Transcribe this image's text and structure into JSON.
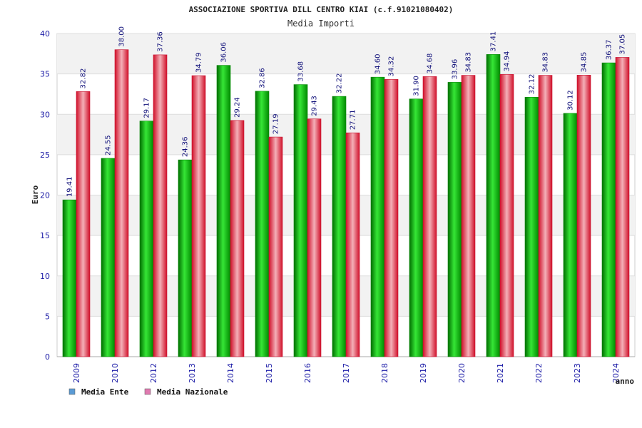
{
  "chart_data": {
    "type": "bar",
    "title": "ASSOCIAZIONE SPORTIVA DILL CENTRO KIAI (c.f.91021080402)",
    "subtitle": "Media Importi",
    "xlabel": "anno",
    "ylabel": "Euro",
    "ylim": [
      0,
      40
    ],
    "yticks": [
      0,
      5,
      10,
      15,
      20,
      25,
      30,
      35,
      40
    ],
    "grid": true,
    "legend_position": "bottom-left",
    "categories": [
      "2009",
      "2010",
      "2012",
      "2013",
      "2014",
      "2015",
      "2016",
      "2017",
      "2018",
      "2019",
      "2020",
      "2021",
      "2022",
      "2023",
      "2024"
    ],
    "series": [
      {
        "name": "Media Ente",
        "color": "#00a000",
        "legend_color": "#5b9bd5",
        "values": [
          19.41,
          24.55,
          29.17,
          24.36,
          36.06,
          32.86,
          33.68,
          32.22,
          34.6,
          31.9,
          33.96,
          37.41,
          32.12,
          30.12,
          36.37
        ]
      },
      {
        "name": "Media Nazionale",
        "color": "#e0203a",
        "legend_color": "#e07ab0",
        "values": [
          32.82,
          38.0,
          37.36,
          34.79,
          29.24,
          27.19,
          29.43,
          27.71,
          34.32,
          34.68,
          34.83,
          34.94,
          34.83,
          34.85,
          37.05
        ]
      }
    ]
  }
}
